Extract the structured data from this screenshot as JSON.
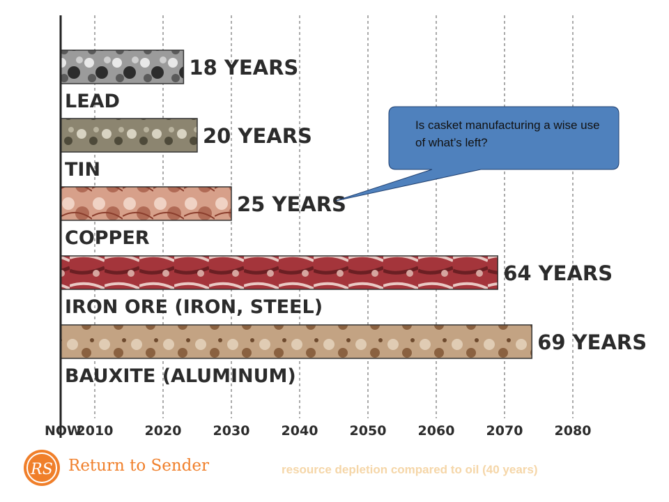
{
  "chart_data": {
    "type": "bar",
    "orientation": "horizontal",
    "categories": [
      "LEAD",
      "TIN",
      "COPPER",
      "IRON ORE (IRON, STEEL)",
      "BAUXITE (ALUMINUM)"
    ],
    "values": [
      18,
      20,
      25,
      64,
      69
    ],
    "value_labels": [
      "18 YEARS",
      "20 YEARS",
      "25 YEARS",
      "64 YEARS",
      "69 YEARS"
    ],
    "x_ticks": [
      "NOW",
      "2010",
      "2020",
      "2030",
      "2040",
      "2050",
      "2060",
      "2070",
      "2080"
    ],
    "xlim": [
      0,
      76
    ],
    "grid": "vertical dashed",
    "bar_colors": [
      "#8c8c8c",
      "#9a937d",
      "#c98a73",
      "#a4353b",
      "#b8946f"
    ]
  },
  "callout": {
    "text": "Is casket manufacturing a wise use of what’s left?",
    "fill": "#4f81bd"
  },
  "footer": {
    "logo_text": "RS",
    "brand": "Return to Sender",
    "caption": "resource depletion compared to oil (40 years)",
    "brand_color": "#f07f2a"
  }
}
